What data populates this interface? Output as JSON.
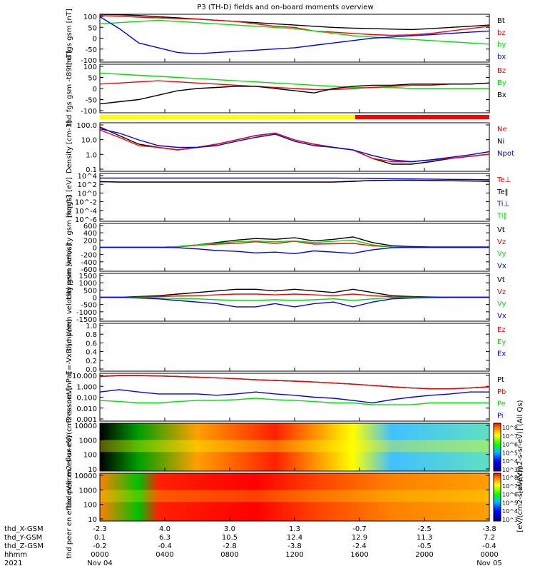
{
  "title": "P3 (TH-D) fields and on-board moments overview",
  "footer": {
    "row_labels": [
      "thd_X-GSM",
      "thd_Y-GSM",
      "thd_Z-GSM",
      "hhmm",
      "2021"
    ],
    "columns": [
      {
        "x": "-2.3",
        "y": "0.1",
        "z": "-0.2",
        "hhmm": "0000",
        "date": "Nov 04"
      },
      {
        "x": "4.0",
        "y": "6.3",
        "z": "-0.4",
        "hhmm": "0400",
        "date": ""
      },
      {
        "x": "3.0",
        "y": "10.5",
        "z": "-2.8",
        "hhmm": "0800",
        "date": ""
      },
      {
        "x": "1.3",
        "y": "12.4",
        "z": "-3.8",
        "hhmm": "1200",
        "date": ""
      },
      {
        "x": "-0.7",
        "y": "12.9",
        "z": "-2.4",
        "hhmm": "1600",
        "date": ""
      },
      {
        "x": "-2.5",
        "y": "11.3",
        "z": "-0.5",
        "hhmm": "2000",
        "date": ""
      },
      {
        "x": "-3.8",
        "y": "7.2",
        "z": "-0.4",
        "hhmm": "0000",
        "date": "Nov 05"
      }
    ]
  },
  "colorbar_labels": {
    "top": "[eV/(cm2-s-sr-eV)] (All Qs)",
    "bottom": "[eV/(cm2-s-sr-eV)]",
    "ticks_top": [
      "10^8",
      "10^7",
      "10^6",
      "10^5",
      "10^4",
      "10^3"
    ],
    "ticks_bottom": [
      "10^8",
      "10^7",
      "10^6",
      "10^5",
      "10^4",
      "10^3"
    ]
  },
  "colors": {
    "black": "#000000",
    "red": "#ff0000",
    "green": "#00e000",
    "blue": "#0000ff"
  },
  "chart_data": [
    {
      "type": "line",
      "ylabel": "thd fgs gsm [nT]",
      "yticks": [
        "100",
        "50",
        "0",
        "-50",
        "-100"
      ],
      "ylim": [
        -100,
        100
      ],
      "legend": [
        {
          "name": "Bt",
          "color": "black"
        },
        {
          "name": "bz",
          "color": "red"
        },
        {
          "name": "by",
          "color": "green"
        },
        {
          "name": "bx",
          "color": "blue"
        }
      ],
      "series": [
        {
          "name": "Bt",
          "color": "black",
          "values": [
            100,
            98,
            95,
            90,
            85,
            80,
            75,
            70,
            65,
            60,
            55,
            50,
            45,
            42,
            40,
            38,
            36,
            40,
            45,
            50,
            55
          ]
        },
        {
          "name": "bz",
          "color": "red",
          "values": [
            95,
            92,
            88,
            85,
            82,
            80,
            75,
            70,
            60,
            50,
            45,
            30,
            25,
            20,
            15,
            12,
            14,
            20,
            30,
            40,
            50
          ]
        },
        {
          "name": "by",
          "color": "green",
          "values": [
            60,
            65,
            70,
            75,
            70,
            65,
            60,
            55,
            50,
            45,
            40,
            30,
            20,
            10,
            5,
            0,
            -5,
            -10,
            -15,
            -20,
            -25
          ]
        },
        {
          "name": "bx",
          "color": "blue",
          "values": [
            90,
            40,
            -20,
            -40,
            -60,
            -65,
            -60,
            -55,
            -50,
            -45,
            -40,
            -30,
            -20,
            -10,
            0,
            5,
            10,
            15,
            20,
            25,
            30
          ]
        }
      ]
    },
    {
      "type": "line",
      "ylabel": "thd fgs gsm -t89 [nT]",
      "yticks": [
        "100",
        "50",
        "0",
        "-50",
        "-100"
      ],
      "ylim": [
        -120,
        100
      ],
      "legend": [
        {
          "name": "Bz",
          "color": "red"
        },
        {
          "name": "By",
          "color": "green"
        },
        {
          "name": "Bx",
          "color": "black"
        }
      ],
      "series": [
        {
          "name": "By",
          "color": "green",
          "values": [
            60,
            55,
            50,
            45,
            40,
            35,
            30,
            25,
            20,
            15,
            10,
            5,
            0,
            -5,
            -5,
            -5,
            -10,
            -10,
            -10,
            -10,
            -10
          ]
        },
        {
          "name": "Bz",
          "color": "red",
          "values": [
            10,
            15,
            20,
            25,
            20,
            15,
            10,
            5,
            0,
            -5,
            -10,
            -15,
            -15,
            -10,
            -5,
            0,
            5,
            5,
            10,
            10,
            15
          ]
        },
        {
          "name": "Bx",
          "color": "black",
          "values": [
            -80,
            -70,
            -60,
            -40,
            -20,
            -10,
            -5,
            0,
            0,
            -10,
            -20,
            -30,
            -10,
            0,
            5,
            5,
            10,
            10,
            10,
            10,
            15
          ]
        }
      ]
    },
    {
      "type": "line",
      "ylabel": "Density [cm-3]",
      "yticks": [
        "100.0",
        "10.0",
        "1.0",
        "0.1"
      ],
      "log": true,
      "legend": [
        {
          "name": "Ne",
          "color": "red"
        },
        {
          "name": "Ni",
          "color": "black"
        },
        {
          "name": "Npot",
          "color": "blue"
        }
      ],
      "series": [
        {
          "name": "Ni",
          "color": "black",
          "values": [
            80,
            20,
            5,
            3,
            2,
            3,
            5,
            10,
            20,
            30,
            10,
            5,
            3,
            2,
            0.5,
            0.2,
            0.2,
            0.3,
            0.5,
            0.7,
            1.0
          ]
        },
        {
          "name": "Ne",
          "color": "red",
          "values": [
            50,
            15,
            4,
            3,
            2,
            3,
            5,
            10,
            20,
            30,
            10,
            5,
            3,
            2,
            0.5,
            0.3,
            0.3,
            0.4,
            0.5,
            0.7,
            1.0
          ]
        },
        {
          "name": "Npot",
          "color": "blue",
          "values": [
            60,
            30,
            10,
            4,
            3,
            3,
            4,
            8,
            15,
            25,
            8,
            4,
            3,
            2,
            0.8,
            0.4,
            0.3,
            0.4,
            0.6,
            0.9,
            1.5
          ]
        }
      ]
    },
    {
      "type": "line",
      "ylabel": "mqgt3 [eV]",
      "yticks": [
        "10^4",
        "10^2",
        "10^0",
        "10^-2",
        "10^-4",
        "10^-6"
      ],
      "log": true,
      "legend": [
        {
          "name": "Te⊥",
          "color": "red"
        },
        {
          "name": "Te‖",
          "color": "black"
        },
        {
          "name": "Ti⊥",
          "color": "blue"
        },
        {
          "name": "Ti‖",
          "color": "green"
        }
      ],
      "series": [
        {
          "name": "Ti⊥",
          "color": "blue",
          "values": [
            3000,
            3000,
            3000,
            3000,
            3000,
            3000,
            3000,
            3000,
            3000,
            3000,
            3000,
            3000,
            3000,
            2800,
            2500,
            2200,
            2000,
            1800,
            1600,
            1500,
            1300
          ]
        },
        {
          "name": "Te⊥",
          "color": "red",
          "values": [
            500,
            400,
            400,
            400,
            400,
            400,
            400,
            400,
            400,
            400,
            400,
            400,
            400,
            600,
            900,
            1000,
            1000,
            900,
            800,
            700,
            600
          ]
        },
        {
          "name": "Te‖",
          "color": "black",
          "values": [
            500,
            400,
            400,
            400,
            400,
            400,
            400,
            400,
            400,
            400,
            400,
            400,
            400,
            600,
            900,
            1000,
            1000,
            900,
            800,
            700,
            600
          ]
        }
      ]
    },
    {
      "type": "line",
      "ylabel": "thd peim velocity gsm [km/s]",
      "yticks": [
        "600",
        "400",
        "200",
        "0",
        "-200",
        "-400",
        "-600"
      ],
      "ylim": [
        -600,
        600
      ],
      "legend": [
        {
          "name": "Vt",
          "color": "black"
        },
        {
          "name": "Vz",
          "color": "red"
        },
        {
          "name": "Vy",
          "color": "green"
        },
        {
          "name": "Vx",
          "color": "blue"
        }
      ],
      "series": [
        {
          "name": "Vt",
          "color": "black",
          "values": [
            0,
            0,
            0,
            0,
            20,
            60,
            120,
            180,
            220,
            200,
            240,
            160,
            200,
            260,
            120,
            40,
            20,
            10,
            10,
            10,
            10
          ]
        },
        {
          "name": "Vz",
          "color": "red",
          "values": [
            0,
            0,
            0,
            0,
            10,
            50,
            80,
            100,
            140,
            100,
            150,
            80,
            90,
            100,
            40,
            10,
            0,
            0,
            0,
            0,
            0
          ]
        },
        {
          "name": "Vy",
          "color": "green",
          "values": [
            0,
            0,
            0,
            0,
            20,
            60,
            100,
            140,
            160,
            140,
            160,
            120,
            150,
            180,
            60,
            10,
            0,
            0,
            0,
            0,
            0
          ]
        },
        {
          "name": "Vx",
          "color": "blue",
          "values": [
            0,
            0,
            0,
            0,
            -10,
            -40,
            -80,
            -100,
            -140,
            -120,
            -160,
            -90,
            -120,
            -150,
            -60,
            -10,
            0,
            0,
            0,
            0,
            0
          ]
        }
      ]
    },
    {
      "type": "line",
      "ylabel": "thd peem velocity gsm [km/s]",
      "yticks": [
        "1500",
        "1000",
        "500",
        "0",
        "-500",
        "-1000",
        "-1500"
      ],
      "ylim": [
        -1500,
        1500
      ],
      "legend": [
        {
          "name": "Vt",
          "color": "black"
        },
        {
          "name": "Vz",
          "color": "red"
        },
        {
          "name": "Vy",
          "color": "green"
        },
        {
          "name": "Vx",
          "color": "blue"
        }
      ],
      "series": [
        {
          "name": "Vt",
          "color": "black",
          "values": [
            0,
            0,
            50,
            100,
            200,
            300,
            400,
            500,
            500,
            400,
            500,
            400,
            300,
            500,
            300,
            100,
            50,
            20,
            10,
            10,
            10
          ]
        },
        {
          "name": "Vz",
          "color": "red",
          "values": [
            0,
            0,
            20,
            40,
            80,
            100,
            150,
            200,
            200,
            150,
            200,
            150,
            100,
            200,
            100,
            30,
            20,
            10,
            0,
            0,
            0
          ]
        },
        {
          "name": "Vy",
          "color": "green",
          "values": [
            0,
            0,
            -20,
            -40,
            -80,
            -100,
            -150,
            -200,
            -200,
            -150,
            -200,
            -150,
            -100,
            -200,
            -100,
            -30,
            -20,
            -10,
            0,
            0,
            0
          ]
        },
        {
          "name": "Vx",
          "color": "blue",
          "values": [
            0,
            0,
            -50,
            -100,
            -200,
            -300,
            -400,
            -600,
            -600,
            -400,
            -600,
            -400,
            -300,
            -600,
            -300,
            -100,
            -50,
            -20,
            0,
            0,
            0
          ]
        }
      ]
    },
    {
      "type": "line",
      "ylabel": "E=-VxB [mV/m]",
      "yticks": [
        "1.0",
        "0.8",
        "0.6",
        "0.4",
        "0.2",
        "0.0"
      ],
      "ylim": [
        0,
        1
      ],
      "legend": [
        {
          "name": "Ez",
          "color": "red"
        },
        {
          "name": "Ey",
          "color": "green"
        },
        {
          "name": "Ex",
          "color": "blue"
        }
      ],
      "series": []
    },
    {
      "type": "line",
      "ylabel": "Pressure [nPa]",
      "yticks": [
        "10.000",
        "1.000",
        "0.100",
        "0.010",
        "0.001"
      ],
      "log": true,
      "legend": [
        {
          "name": "Pt",
          "color": "black"
        },
        {
          "name": "Pb",
          "color": "red"
        },
        {
          "name": "Pe",
          "color": "green"
        },
        {
          "name": "Pi",
          "color": "blue"
        }
      ],
      "series": [
        {
          "name": "Pt",
          "color": "black",
          "values": [
            8,
            10,
            10,
            9,
            8,
            7,
            6,
            5,
            4,
            3.5,
            3,
            2.5,
            2,
            1.6,
            1.2,
            0.9,
            0.7,
            0.6,
            0.6,
            0.7,
            0.9
          ]
        },
        {
          "name": "Pb",
          "color": "red",
          "values": [
            8,
            10,
            10,
            9,
            8,
            7,
            6,
            5,
            4,
            3.5,
            3,
            2.5,
            2,
            1.6,
            1.2,
            0.9,
            0.7,
            0.6,
            0.6,
            0.7,
            0.9
          ]
        },
        {
          "name": "Pi",
          "color": "blue",
          "values": [
            0.3,
            0.5,
            0.3,
            0.2,
            0.2,
            0.2,
            0.15,
            0.2,
            0.3,
            0.2,
            0.15,
            0.1,
            0.08,
            0.05,
            0.03,
            0.06,
            0.1,
            0.15,
            0.2,
            0.3,
            0.3
          ]
        },
        {
          "name": "Pe",
          "color": "green",
          "values": [
            0.05,
            0.04,
            0.03,
            0.03,
            0.04,
            0.05,
            0.05,
            0.06,
            0.08,
            0.06,
            0.05,
            0.04,
            0.03,
            0.03,
            0.02,
            0.02,
            0.02,
            0.03,
            0.03,
            0.03,
            0.03
          ]
        }
      ]
    },
    {
      "type": "heatmap",
      "ylabel": "thd peir en eflux eV/(cm2-s-sr-eV)",
      "yticks": [
        "10000",
        "1000",
        "100",
        "10"
      ]
    },
    {
      "type": "heatmap",
      "ylabel": "thd peer en eflux eV/(cm2-s-sr-eV)",
      "yticks": [
        "10000",
        "1000",
        "100",
        "10"
      ]
    }
  ]
}
